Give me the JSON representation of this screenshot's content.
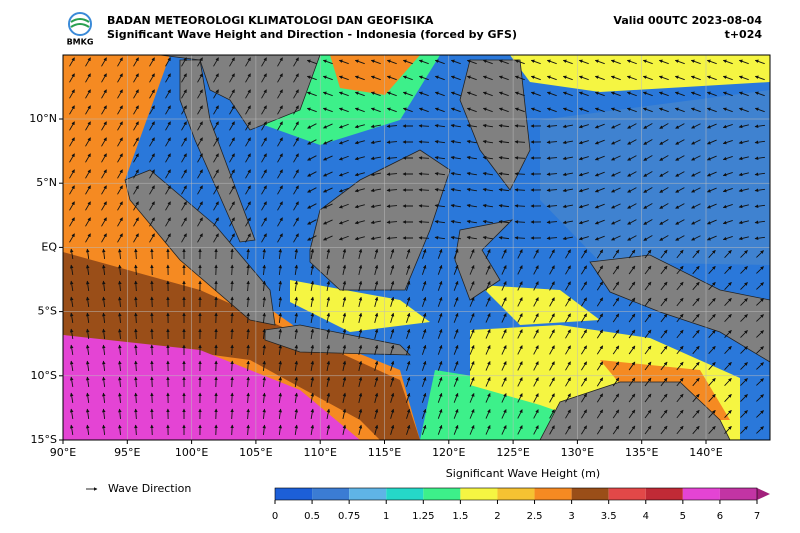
{
  "header": {
    "logo": "BMKG",
    "org": "BADAN METEOROLOGI KLIMATOLOGI DAN GEOFISIKA",
    "subtitle": "Significant Wave Height and Direction - Indonesia (forced by GFS)",
    "valid": "Valid 00UTC 2023-08-04",
    "lead": "t+024"
  },
  "map": {
    "lat_labels": [
      "10°N",
      "5°N",
      "EQ",
      "5°S",
      "10°S",
      "15°S"
    ],
    "lon_labels": [
      "90°E",
      "95°E",
      "100°E",
      "105°E",
      "110°E",
      "115°E",
      "120°E",
      "125°E",
      "130°E",
      "135°E",
      "140°E"
    ]
  },
  "legend": {
    "arrow_label": "Wave Direction"
  },
  "colorbar": {
    "title": "Significant Wave Height (m)",
    "ticks": [
      "0",
      "0.5",
      "0.75",
      "1",
      "1.25",
      "1.5",
      "2",
      "2.5",
      "3",
      "3.5",
      "4",
      "5",
      "6",
      "7"
    ],
    "colors": [
      "#1c5fd8",
      "#3b7cd4",
      "#5fb4e6",
      "#25d8c8",
      "#3df08a",
      "#f5f542",
      "#f5c232",
      "#f58a22",
      "#9a4e18",
      "#e24848",
      "#c02a36",
      "#e444d4",
      "#c234a4"
    ],
    "extend_color": "#a2207c"
  }
}
